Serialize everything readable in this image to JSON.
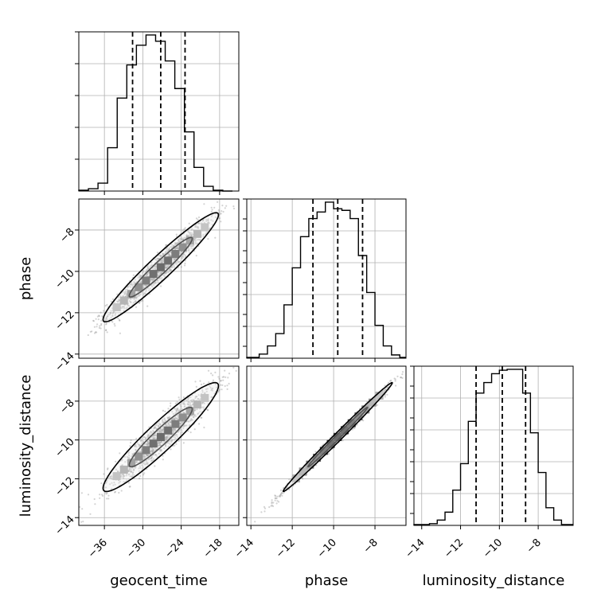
{
  "chart_data": {
    "type": "corner",
    "parameters": [
      "geocent_time",
      "phase",
      "luminosity_distance"
    ],
    "quantile_lines": [
      0.16,
      0.5,
      0.84
    ],
    "grid": true,
    "colors": {
      "line": "#000000",
      "grid": "#b0b0b0",
      "points": "#808080"
    },
    "x_axes": [
      {
        "name": "geocent_time",
        "label": "geocent_time",
        "range": [
          -40,
          -15
        ],
        "ticks": [
          -36,
          -30,
          -24,
          -18
        ]
      },
      {
        "name": "phase",
        "label": "phase",
        "range": [
          -14.2,
          -6.5
        ],
        "ticks": [
          -14,
          -12,
          -10,
          -8
        ]
      },
      {
        "name": "luminosity_distance",
        "label": "luminosity_distance",
        "range": [
          -14.4,
          -6.2
        ],
        "ticks": [
          -14,
          -12,
          -10,
          -8
        ]
      }
    ],
    "y_axes": [
      {
        "name": "phase",
        "label": "phase",
        "range": [
          -14.2,
          -6.5
        ],
        "ticks": [
          -14,
          -12,
          -10,
          -8
        ]
      },
      {
        "name": "luminosity_distance",
        "label": "luminosity_distance",
        "range": [
          -14.4,
          -6.2
        ],
        "ticks": [
          -14,
          -12,
          -10,
          -8
        ]
      }
    ],
    "histograms": [
      {
        "parameter": "geocent_time",
        "bin_edges": [
          -40,
          -38.5,
          -37,
          -35.5,
          -34,
          -32.5,
          -31,
          -29.5,
          -28,
          -26.5,
          -25,
          -23.5,
          -22,
          -20.5,
          -19,
          -17.5,
          -16
        ],
        "counts": [
          1,
          3,
          10,
          55,
          118,
          160,
          185,
          198,
          190,
          165,
          130,
          75,
          30,
          6,
          1,
          0
        ],
        "quantiles": [
          -31.6,
          -27.2,
          -23.4
        ]
      },
      {
        "parameter": "phase",
        "bin_edges": [
          -14.2,
          -13.6,
          -13.2,
          -12.8,
          -12.4,
          -12.0,
          -11.6,
          -11.2,
          -10.8,
          -10.4,
          -10.0,
          -9.6,
          -9.2,
          -8.8,
          -8.4,
          -8.0,
          -7.6,
          -7.2,
          -6.8,
          -6.5
        ],
        "counts": [
          1,
          5,
          15,
          30,
          65,
          110,
          148,
          170,
          178,
          190,
          182,
          180,
          170,
          125,
          80,
          40,
          15,
          4,
          1
        ],
        "quantiles": [
          -11.0,
          -9.8,
          -8.6
        ]
      },
      {
        "parameter": "luminosity_distance",
        "bin_edges": [
          -14.4,
          -13.6,
          -13.2,
          -12.8,
          -12.4,
          -12.0,
          -11.6,
          -11.2,
          -10.8,
          -10.4,
          -10.0,
          -9.6,
          -9.2,
          -8.8,
          -8.4,
          -8.0,
          -7.6,
          -7.2,
          -6.8,
          -6.2
        ],
        "counts": [
          1,
          2,
          6,
          15,
          40,
          70,
          118,
          150,
          162,
          172,
          176,
          177,
          177,
          150,
          105,
          60,
          20,
          6,
          1
        ],
        "quantiles": [
          -11.2,
          -9.85,
          -8.65
        ]
      }
    ],
    "scatter_panels": [
      {
        "x": "geocent_time",
        "y": "phase",
        "correlation": 0.96
      },
      {
        "x": "geocent_time",
        "y": "luminosity_distance",
        "correlation": 0.94
      },
      {
        "x": "phase",
        "y": "luminosity_distance",
        "correlation": 0.995
      }
    ]
  }
}
